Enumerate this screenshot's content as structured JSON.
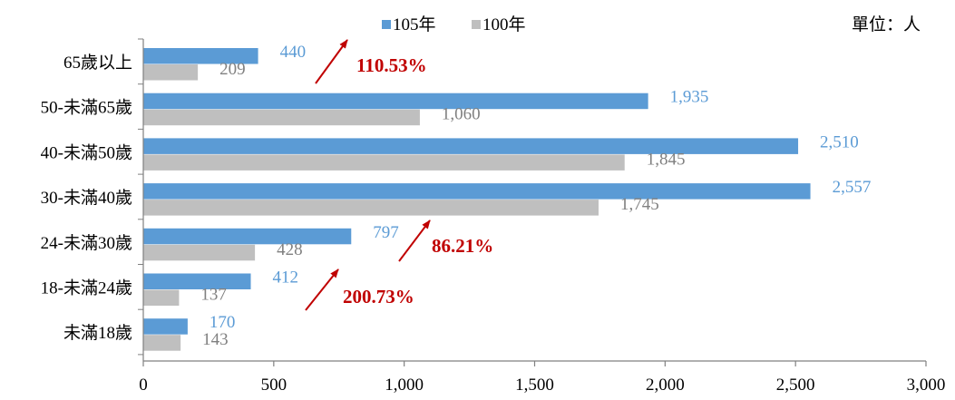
{
  "chart_data": {
    "type": "bar",
    "orientation": "horizontal",
    "categories": [
      "65歲以上",
      "50-未滿65歲",
      "40-未滿50歲",
      "30-未滿40歲",
      "24-未滿30歲",
      "18-未滿24歲",
      "未滿18歲"
    ],
    "series": [
      {
        "name": "105年",
        "color": "#5B9BD5",
        "values": [
          440,
          1935,
          2510,
          2557,
          797,
          412,
          170
        ],
        "value_labels": [
          "440",
          "1,935",
          "2,510",
          "2,557",
          "797",
          "412",
          "170"
        ]
      },
      {
        "name": "100年",
        "color": "#BFBFBF",
        "values": [
          209,
          1060,
          1845,
          1745,
          428,
          137,
          143
        ],
        "value_labels": [
          "209",
          "1,060",
          "1,845",
          "1,745",
          "428",
          "137",
          "143"
        ]
      }
    ],
    "xlim": [
      0,
      3000
    ],
    "x_ticks": [
      0,
      500,
      1000,
      1500,
      2000,
      2500,
      3000
    ],
    "x_tick_labels": [
      "0",
      "500",
      "1,000",
      "1,500",
      "2,000",
      "2,500",
      "3,000"
    ],
    "legend_position": "top-center",
    "grid": false,
    "unit_label": "單位：人",
    "annotations": [
      {
        "category": "65歲以上",
        "text": "110.53%",
        "color": "#C00000"
      },
      {
        "category": "24-未滿30歲",
        "text": "86.21%",
        "color": "#C00000"
      },
      {
        "category": "18-未滿24歲",
        "text": "200.73%",
        "color": "#C00000"
      }
    ]
  }
}
